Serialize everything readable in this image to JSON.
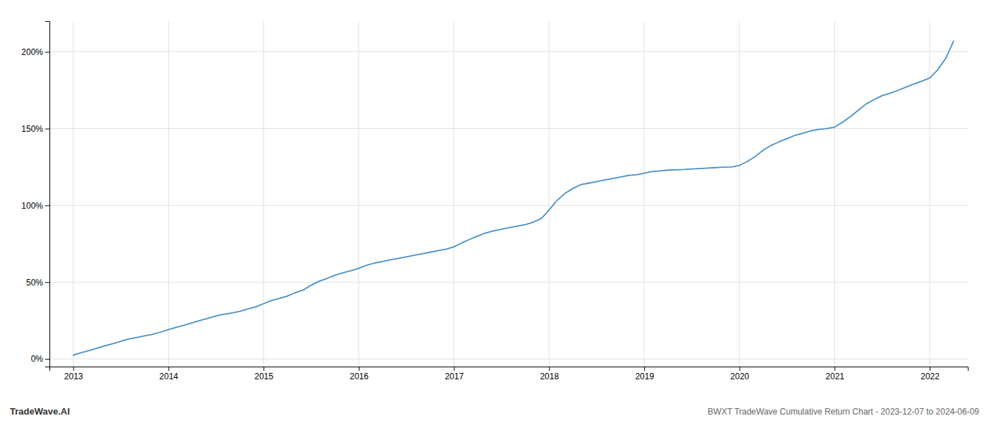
{
  "chart_data": {
    "type": "line",
    "title": "BWXT TradeWave Cumulative Return Chart - 2023-12-07 to 2024-06-09",
    "annotations": [
      "TradeWave.AI"
    ],
    "color": "#4a90c4",
    "grid": true,
    "x": [
      2013.0,
      2013.08,
      2013.17,
      2013.25,
      2013.33,
      2013.42,
      2013.5,
      2013.58,
      2013.67,
      2013.75,
      2013.83,
      2013.92,
      2014.0,
      2014.08,
      2014.17,
      2014.25,
      2014.33,
      2014.42,
      2014.5,
      2014.58,
      2014.67,
      2014.75,
      2014.83,
      2014.92,
      2015.0,
      2015.08,
      2015.17,
      2015.25,
      2015.33,
      2015.42,
      2015.5,
      2015.58,
      2015.67,
      2015.75,
      2015.83,
      2015.92,
      2016.0,
      2016.08,
      2016.17,
      2016.25,
      2016.33,
      2016.42,
      2016.5,
      2016.58,
      2016.67,
      2016.75,
      2016.83,
      2016.92,
      2017.0,
      2017.08,
      2017.17,
      2017.25,
      2017.33,
      2017.42,
      2017.5,
      2017.58,
      2017.67,
      2017.75,
      2017.83,
      2017.92,
      2018.0,
      2018.08,
      2018.17,
      2018.25,
      2018.33,
      2018.42,
      2018.5,
      2018.58,
      2018.67,
      2018.75,
      2018.83,
      2018.92,
      2019.0,
      2019.08,
      2019.17,
      2019.25,
      2019.33,
      2019.42,
      2019.5,
      2019.58,
      2019.67,
      2019.75,
      2019.83,
      2019.92,
      2020.0,
      2020.08,
      2020.17,
      2020.25,
      2020.33,
      2020.42,
      2020.5,
      2020.58,
      2020.67,
      2020.75,
      2020.83,
      2020.92,
      2021.0,
      2021.08,
      2021.17,
      2021.25,
      2021.33,
      2021.42,
      2021.5,
      2021.58,
      2021.67,
      2021.75,
      2021.83,
      2021.92,
      2022.0,
      2022.08,
      2022.17,
      2022.25
    ],
    "values": [
      2.5,
      4.0,
      5.5,
      7.0,
      8.5,
      10.0,
      11.5,
      13.0,
      14.0,
      15.0,
      16.0,
      17.5,
      19.0,
      20.5,
      22.0,
      23.5,
      25.0,
      26.5,
      28.0,
      29.0,
      30.0,
      31.0,
      32.5,
      34.0,
      36.0,
      38.0,
      39.5,
      41.0,
      43.0,
      45.0,
      48.0,
      50.5,
      52.5,
      54.5,
      56.0,
      57.5,
      59.0,
      61.0,
      62.5,
      63.5,
      64.5,
      65.5,
      66.5,
      67.5,
      68.5,
      69.5,
      70.5,
      71.5,
      73.0,
      75.5,
      78.0,
      80.0,
      82.0,
      83.5,
      84.5,
      85.5,
      86.5,
      87.5,
      89.0,
      91.5,
      97.0,
      103.0,
      108.0,
      111.0,
      113.5,
      114.5,
      115.5,
      116.5,
      117.5,
      118.5,
      119.5,
      120.0,
      121.0,
      122.0,
      122.5,
      123.0,
      123.2,
      123.4,
      123.7,
      124.0,
      124.3,
      124.6,
      124.9,
      125.0,
      126.0,
      128.5,
      132.0,
      136.0,
      139.0,
      141.5,
      143.5,
      145.5,
      147.0,
      148.5,
      149.5,
      150.0,
      151.0,
      154.0,
      158.0,
      162.0,
      166.0,
      169.0,
      171.5,
      173.0,
      175.0,
      177.0,
      179.0,
      181.0,
      183.0,
      188.0,
      196.0,
      207.0
    ],
    "xlim": [
      2012.75,
      2022.4
    ],
    "xticks": [
      2013,
      2014,
      2015,
      2016,
      2017,
      2018,
      2019,
      2020,
      2021,
      2022
    ],
    "ylim": [
      -5,
      220
    ],
    "yticks": [
      {
        "value": 0,
        "label": "0%"
      },
      {
        "value": 50,
        "label": "50%"
      },
      {
        "value": 100,
        "label": "100%"
      },
      {
        "value": 150,
        "label": "150%"
      },
      {
        "value": 200,
        "label": "200%"
      }
    ]
  }
}
